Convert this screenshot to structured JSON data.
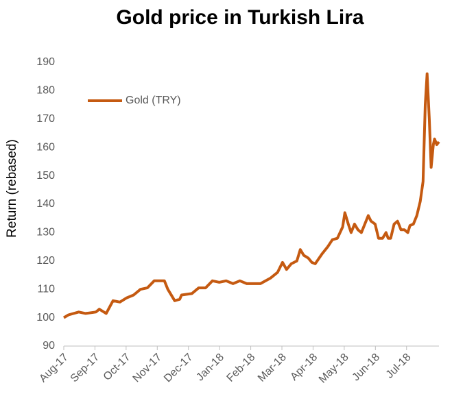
{
  "chart_data": {
    "type": "line",
    "title": "Gold price in Turkish Lira",
    "y_label": "Return (rebased)",
    "x": [
      0,
      0.15,
      0.48,
      0.7,
      1.03,
      1.14,
      1.36,
      1.58,
      1.8,
      2.02,
      2.24,
      2.46,
      2.68,
      2.9,
      3.23,
      3.34,
      3.56,
      3.72,
      3.78,
      4.11,
      4.33,
      4.55,
      4.77,
      4.99,
      5.21,
      5.43,
      5.65,
      5.87,
      6.09,
      6.31,
      6.64,
      6.86,
      7.02,
      7.15,
      7.3,
      7.48,
      7.59,
      7.7,
      7.85,
      7.96,
      8.07,
      8.29,
      8.47,
      8.62,
      8.78,
      8.95,
      9.02,
      9.13,
      9.22,
      9.33,
      9.44,
      9.55,
      9.66,
      9.77,
      9.86,
      9.99,
      10.1,
      10.23,
      10.34,
      10.41,
      10.49,
      10.6,
      10.71,
      10.82,
      10.93,
      11.04,
      11.11,
      11.22,
      11.33,
      11.44,
      11.53,
      11.6,
      11.66,
      11.73,
      11.79,
      11.86,
      11.9,
      11.97,
      12.04
    ],
    "series": [
      {
        "name": "Gold (TRY)",
        "color": "#c55a11",
        "values": [
          100,
          101,
          102,
          101.5,
          102,
          103,
          101.5,
          106,
          105.5,
          107,
          108,
          110,
          110.5,
          113,
          113,
          110,
          106,
          106.5,
          108,
          108.5,
          110.5,
          110.5,
          113,
          112.5,
          113,
          112,
          113,
          112,
          112,
          112,
          114,
          116,
          119.5,
          117,
          119,
          120,
          124,
          122,
          121,
          119.5,
          119,
          122.5,
          125,
          127.5,
          128,
          132,
          137,
          133,
          130,
          133,
          131,
          130,
          133,
          136,
          134,
          133,
          128,
          128,
          130,
          128,
          128,
          133,
          134,
          131,
          131,
          130,
          132.5,
          133,
          136,
          141,
          148,
          175,
          186,
          170,
          153,
          161,
          163,
          161,
          162
        ]
      }
    ],
    "xlim": [
      0,
      12.04
    ],
    "xticks": [
      {
        "value": 0,
        "label": "Aug-17"
      },
      {
        "value": 1,
        "label": "Sep-17"
      },
      {
        "value": 2,
        "label": "Oct-17"
      },
      {
        "value": 3,
        "label": "Nov-17"
      },
      {
        "value": 4,
        "label": "Dec-17"
      },
      {
        "value": 5,
        "label": "Jan-18"
      },
      {
        "value": 6,
        "label": "Feb-18"
      },
      {
        "value": 7,
        "label": "Mar-18"
      },
      {
        "value": 8,
        "label": "Apr-18"
      },
      {
        "value": 9,
        "label": "May-18"
      },
      {
        "value": 10,
        "label": "Jun-18"
      },
      {
        "value": 11,
        "label": "Jul-18"
      }
    ],
    "ylim": [
      90,
      190
    ],
    "yticks": [
      90,
      100,
      110,
      120,
      130,
      140,
      150,
      160,
      170,
      180,
      190
    ],
    "legend": "top-left"
  }
}
